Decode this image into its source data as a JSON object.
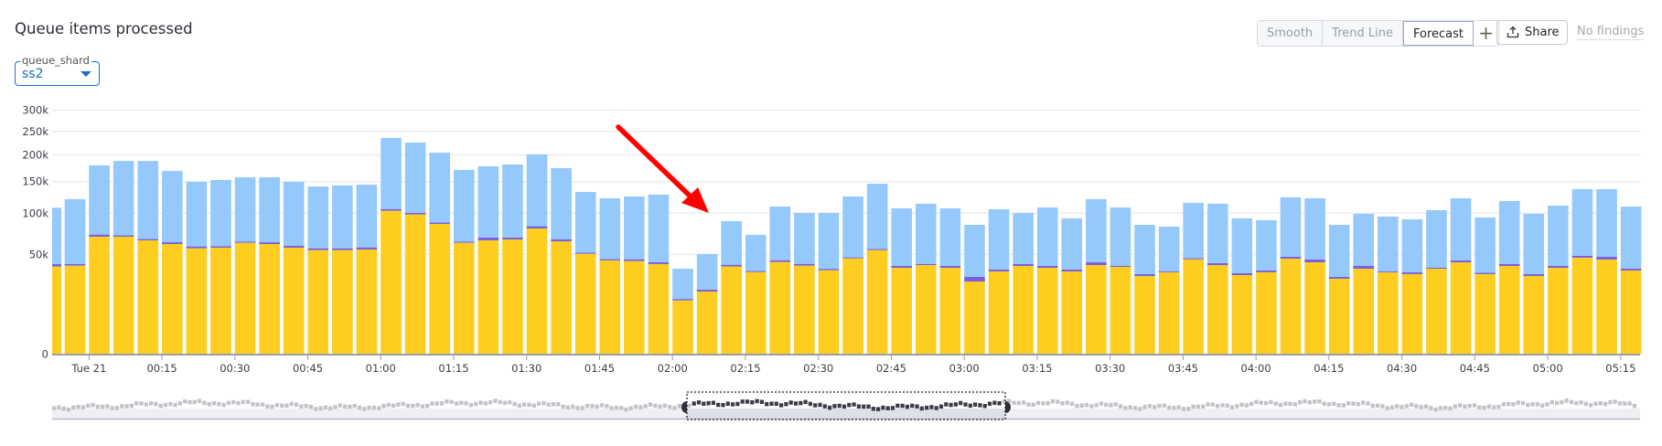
{
  "header": {
    "title": "Queue items processed",
    "filter": {
      "label": "queue_shard",
      "value": "ss2"
    },
    "buttons": {
      "smooth": "Smooth",
      "trend_line": "Trend Line",
      "forecast": "Forecast",
      "add": "+",
      "share": "Share"
    },
    "findings": "No findings"
  },
  "colors": {
    "yellow": "#fdcd20",
    "purple": "#7a5fe0",
    "blue": "#95c9fb",
    "grid": "#ececee",
    "axis": "#9a9ea8",
    "arrow": "#ff0000",
    "accent": "#1a6fc4"
  },
  "chart_data": {
    "type": "bar",
    "stacked": true,
    "y_scale": "sqrt",
    "ylim": [
      0,
      300000
    ],
    "grid": true,
    "y_ticks": [
      0,
      50000,
      100000,
      150000,
      200000,
      250000,
      300000
    ],
    "y_tick_labels": [
      "0",
      "50k",
      "100k",
      "150k",
      "200k",
      "250k",
      "300k"
    ],
    "x_tick_labels": [
      "Tue 21",
      "00:15",
      "00:30",
      "00:45",
      "01:00",
      "01:15",
      "01:30",
      "01:45",
      "02:00",
      "02:15",
      "02:30",
      "02:45",
      "03:00",
      "03:15",
      "03:30",
      "03:45",
      "04:00",
      "04:15",
      "04:30",
      "04:45",
      "05:00",
      "05:15"
    ],
    "categories": [
      "23:50",
      "23:55",
      "00:00",
      "00:05",
      "00:10",
      "00:15",
      "00:20",
      "00:25",
      "00:30",
      "00:35",
      "00:40",
      "00:45",
      "00:50",
      "00:55",
      "01:00",
      "01:05",
      "01:10",
      "01:15",
      "01:20",
      "01:25",
      "01:30",
      "01:35",
      "01:40",
      "01:45",
      "01:50",
      "01:55",
      "02:00",
      "02:05",
      "02:10",
      "02:15",
      "02:20",
      "02:25",
      "02:30",
      "02:35",
      "02:40",
      "02:45",
      "02:50",
      "02:55",
      "03:00",
      "03:05",
      "03:10",
      "03:15",
      "03:20",
      "03:25",
      "03:30",
      "03:35",
      "03:40",
      "03:45",
      "03:50",
      "03:55",
      "04:00",
      "04:05",
      "04:10",
      "04:15",
      "04:20",
      "04:25",
      "04:30",
      "04:35",
      "04:40",
      "04:45",
      "04:50",
      "04:55",
      "05:00",
      "05:05",
      "05:10",
      "05:15"
    ],
    "series": [
      {
        "color": "#fdcd20",
        "values": [
          38600,
          39400,
          69400,
          69400,
          65200,
          61000,
          56400,
          57000,
          62400,
          61000,
          57000,
          54500,
          54500,
          55100,
          103500,
          98300,
          85400,
          62400,
          65200,
          66200,
          79500,
          64100,
          50700,
          44200,
          43600,
          40800,
          14500,
          19700,
          38600,
          33900,
          42700,
          39400,
          35400,
          46200,
          54500,
          37500,
          39900,
          37500,
          26500,
          34400,
          39100,
          37500,
          34400,
          39900,
          38300,
          30700,
          33700,
          45300,
          39900,
          31400,
          33700,
          45900,
          42400,
          28600,
          36700,
          33700,
          32200,
          36700,
          42400,
          32200,
          39100,
          30700,
          37500,
          46800,
          45000,
          35200
        ]
      },
      {
        "color": "#7a5fe0",
        "values": [
          2200,
          1400,
          2600,
          1500,
          1400,
          2000,
          2000,
          1400,
          1100,
          2000,
          2000,
          1900,
          1900,
          2300,
          2500,
          2100,
          2000,
          1100,
          3200,
          2200,
          2800,
          2100,
          1000,
          1100,
          1700,
          1600,
          700,
          1200,
          1600,
          800,
          1700,
          1600,
          1100,
          800,
          1000,
          1600,
          900,
          1600,
          3500,
          1600,
          1700,
          1600,
          1600,
          2500,
          800,
          1500,
          700,
          900,
          1700,
          1500,
          1500,
          1800,
          2600,
          1400,
          2400,
          700,
          1500,
          800,
          1800,
          1000,
          1700,
          1500,
          1600,
          1800,
          2700,
          1500
        ]
      },
      {
        "color": "#95c9fb",
        "values": [
          67200,
          80200,
          107500,
          117100,
          121400,
          106000,
          91200,
          94300,
          94100,
          94600,
          90600,
          85300,
          86900,
          87400,
          129500,
          125200,
          117300,
          107400,
          109400,
          112900,
          118700,
          108100,
          80900,
          77000,
          79900,
          85800,
          21500,
          29500,
          48900,
          36900,
          65300,
          59400,
          63900,
          78200,
          90900,
          67900,
          73100,
          67900,
          54200,
          69700,
          59600,
          69300,
          56800,
          78600,
          69300,
          52000,
          47500,
          69100,
          72300,
          59900,
          55100,
          76100,
          77300,
          54200,
          60000,
          60900,
          57800,
          66900,
          78100,
          60800,
          77300,
          66900,
          72000,
          88500,
          89400,
          73000
        ]
      }
    ]
  },
  "navigator": {
    "selected_range": [
      "02:00",
      "03:40"
    ]
  }
}
